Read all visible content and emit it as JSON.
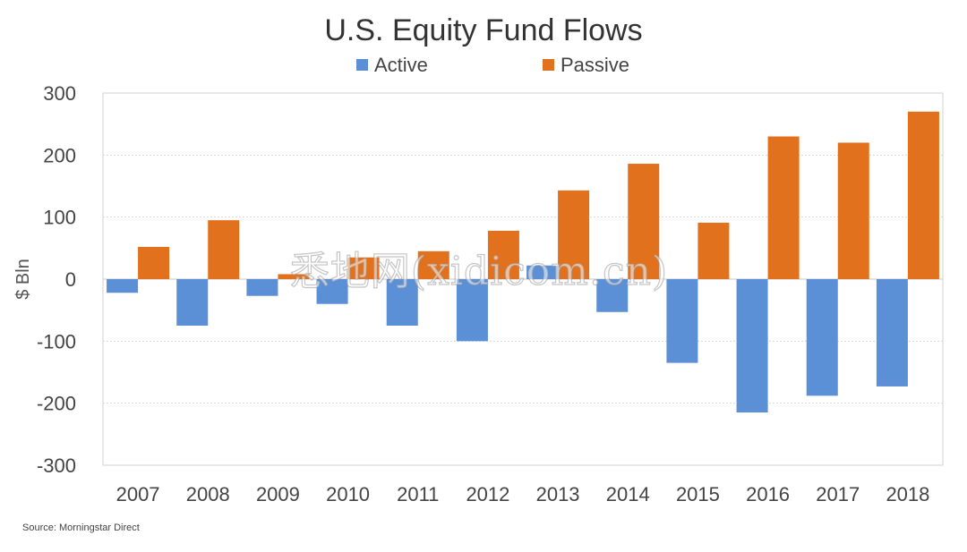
{
  "chart_data": {
    "type": "bar",
    "title": "U.S. Equity Fund Flows",
    "ylabel": "$ Bln",
    "xlabel": "",
    "ylim": [
      -300,
      300
    ],
    "yticks": [
      300,
      200,
      100,
      0,
      -100,
      -200,
      -300
    ],
    "grid": true,
    "legend_position": "top",
    "categories": [
      "2007",
      "2008",
      "2009",
      "2010",
      "2011",
      "2012",
      "2013",
      "2014",
      "2015",
      "2016",
      "2017",
      "2018"
    ],
    "series": [
      {
        "name": "Active",
        "color": "#5b8fd6",
        "values": [
          -22,
          -75,
          -27,
          -40,
          -75,
          -100,
          22,
          -53,
          -135,
          -215,
          -188,
          -173
        ]
      },
      {
        "name": "Passive",
        "color": "#e2711d",
        "values": [
          52,
          95,
          8,
          35,
          45,
          78,
          143,
          186,
          91,
          230,
          220,
          270
        ]
      }
    ]
  },
  "source": "Source: Morningstar Direct",
  "watermark": "悉地网(xidicom.cn)"
}
